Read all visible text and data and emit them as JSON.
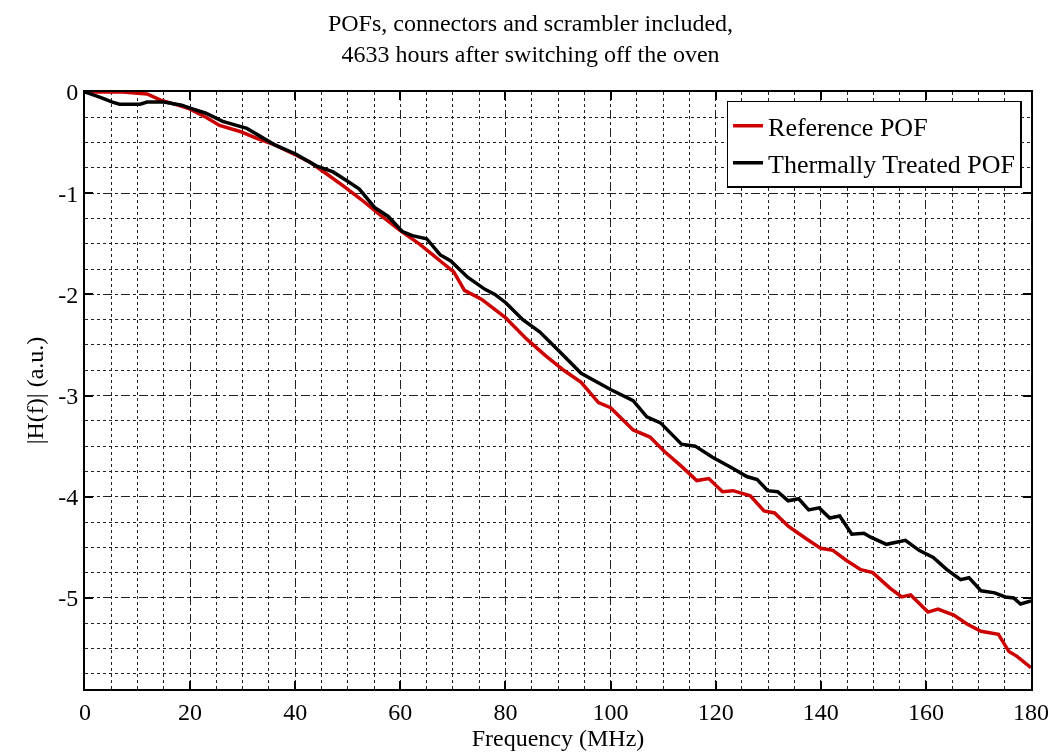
{
  "chart_data": {
    "type": "line",
    "title": "POFs, connectors and scrambler included,\n4633 hours after switching off the oven",
    "xlabel": "Frequency (MHz)",
    "ylabel": "|H(f)| (a.u.)",
    "xlim": [
      0,
      180
    ],
    "xticks": [
      0,
      20,
      40,
      60,
      80,
      100,
      120,
      140,
      160,
      180
    ],
    "ylim": [
      -5.9,
      0
    ],
    "yticks": [
      0,
      -1,
      -2,
      -3,
      -4,
      -5
    ],
    "grid": true,
    "legend": "top right",
    "marker": "none",
    "line_style": "solid",
    "series": [
      {
        "name": "Reference POF",
        "color": "#cc0000",
        "x": [
          0,
          2.6,
          7.2,
          11.8,
          14.4,
          17.7,
          20,
          23,
          25.6,
          29.5,
          32.8,
          36,
          40,
          42.7,
          46,
          49.2,
          52.5,
          55.8,
          60,
          63.6,
          67.6,
          70.2,
          72.2,
          75.5,
          80,
          84,
          87.5,
          91.1,
          94.4,
          97.7,
          100,
          104.3,
          107.5,
          110.2,
          113.5,
          116.4,
          118.7,
          121.3,
          123.3,
          126.6,
          129.2,
          131.2,
          133.8,
          137.1,
          140,
          142.3,
          144.9,
          147.6,
          149.9,
          153.1,
          155.4,
          157.1,
          160.4,
          162.3,
          165.3,
          167.9,
          170.5,
          173.8,
          175.8,
          177.4,
          180
        ],
        "values": [
          0,
          0,
          0,
          -0.02,
          -0.08,
          -0.13,
          -0.17,
          -0.25,
          -0.33,
          -0.39,
          -0.46,
          -0.52,
          -0.62,
          -0.69,
          -0.81,
          -0.93,
          -1.06,
          -1.2,
          -1.37,
          -1.5,
          -1.67,
          -1.78,
          -1.96,
          -2.05,
          -2.23,
          -2.44,
          -2.6,
          -2.75,
          -2.87,
          -3.07,
          -3.12,
          -3.34,
          -3.41,
          -3.55,
          -3.7,
          -3.84,
          -3.82,
          -3.95,
          -3.94,
          -3.99,
          -4.14,
          -4.16,
          -4.29,
          -4.41,
          -4.51,
          -4.53,
          -4.63,
          -4.72,
          -4.75,
          -4.9,
          -4.99,
          -4.97,
          -5.14,
          -5.11,
          -5.17,
          -5.26,
          -5.33,
          -5.36,
          -5.53,
          -5.58,
          -5.69
        ]
      },
      {
        "name": "Thermally Treated POF",
        "color": "#000000",
        "x": [
          0,
          3.3,
          5.2,
          6.6,
          10.5,
          11.8,
          15,
          18.4,
          20,
          23,
          26.2,
          30.8,
          36,
          40,
          44,
          47.2,
          49.9,
          52.2,
          55.1,
          57.7,
          60.4,
          62.3,
          65,
          67.6,
          69.6,
          72.8,
          76.1,
          78,
          80,
          83.3,
          86.5,
          90,
          94.4,
          100,
          104.3,
          106.9,
          109.5,
          113.5,
          116.1,
          119.4,
          123.3,
          125.9,
          127.9,
          129.9,
          131.8,
          133.8,
          135.8,
          137.7,
          139.7,
          141.7,
          143.6,
          145.9,
          148.2,
          149.5,
          152.5,
          156.1,
          158.7,
          161.4,
          164,
          166.6,
          168.2,
          170.5,
          173.1,
          175.1,
          176.7,
          178,
          180
        ],
        "values": [
          0,
          -0.06,
          -0.1,
          -0.12,
          -0.12,
          -0.1,
          -0.1,
          -0.13,
          -0.16,
          -0.21,
          -0.29,
          -0.36,
          -0.52,
          -0.61,
          -0.73,
          -0.79,
          -0.88,
          -0.96,
          -1.14,
          -1.23,
          -1.38,
          -1.42,
          -1.45,
          -1.61,
          -1.67,
          -1.83,
          -1.95,
          -2.0,
          -2.08,
          -2.25,
          -2.37,
          -2.55,
          -2.78,
          -2.94,
          -3.05,
          -3.21,
          -3.27,
          -3.48,
          -3.5,
          -3.61,
          -3.72,
          -3.8,
          -3.83,
          -3.94,
          -3.95,
          -4.04,
          -4.02,
          -4.13,
          -4.11,
          -4.21,
          -4.19,
          -4.37,
          -4.36,
          -4.4,
          -4.47,
          -4.43,
          -4.53,
          -4.6,
          -4.72,
          -4.82,
          -4.8,
          -4.93,
          -4.95,
          -4.99,
          -5.0,
          -5.06,
          -5.03
        ]
      }
    ]
  }
}
